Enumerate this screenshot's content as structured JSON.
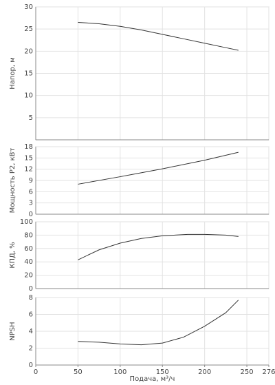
{
  "chart_data": [
    {
      "type": "line",
      "ylabel": "Напор, м",
      "x": [
        50,
        75,
        100,
        125,
        150,
        175,
        200,
        225,
        240
      ],
      "series": [
        {
          "color": "#333333",
          "values": [
            26.5,
            26.2,
            25.6,
            24.8,
            23.8,
            22.8,
            21.8,
            20.8,
            20.2
          ]
        }
      ],
      "ylim": [
        0,
        30
      ],
      "yticks": [
        5,
        10,
        15,
        20,
        25,
        30
      ],
      "grid": true
    },
    {
      "type": "line",
      "ylabel": "Мощность P2, кВт",
      "x": [
        50,
        100,
        150,
        200,
        240
      ],
      "series": [
        {
          "color": "#333333",
          "values": [
            8,
            10,
            12.1,
            14.4,
            16.5
          ]
        }
      ],
      "ylim": [
        0,
        18
      ],
      "yticks": [
        0,
        3,
        6,
        9,
        12,
        15,
        18
      ],
      "grid": true
    },
    {
      "type": "line",
      "ylabel": "КПД, %",
      "x": [
        50,
        75,
        100,
        125,
        150,
        180,
        200,
        225,
        240
      ],
      "series": [
        {
          "color": "#333333",
          "values": [
            43,
            58,
            68,
            75,
            79,
            81,
            81,
            80,
            78
          ]
        }
      ],
      "ylim": [
        0,
        100
      ],
      "yticks": [
        0,
        20,
        40,
        60,
        80,
        100
      ],
      "grid": true
    },
    {
      "type": "line",
      "ylabel": "NPSH",
      "xlabel": "Подача, м³/ч",
      "x": [
        50,
        75,
        100,
        125,
        150,
        175,
        200,
        225,
        240
      ],
      "series": [
        {
          "color": "#333333",
          "values": [
            2.8,
            2.7,
            2.5,
            2.4,
            2.6,
            3.3,
            4.6,
            6.2,
            7.7
          ]
        }
      ],
      "ylim": [
        0,
        8
      ],
      "yticks": [
        0,
        2,
        4,
        6,
        8
      ],
      "xlim": [
        0,
        276
      ],
      "xticks": [
        0,
        50,
        100,
        150,
        200,
        250,
        276
      ],
      "grid": true
    }
  ]
}
